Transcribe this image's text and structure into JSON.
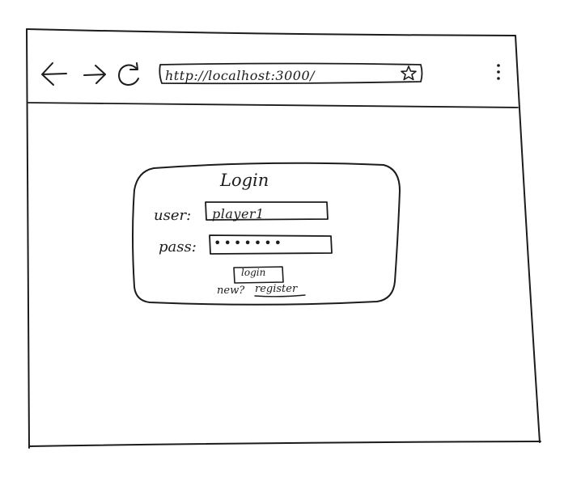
{
  "browser": {
    "url": "http://localhost:3000/",
    "icons": {
      "back": "arrow-left",
      "forward": "arrow-right",
      "reload": "reload",
      "bookmark": "star",
      "menu": "kebab-menu"
    }
  },
  "login": {
    "title": "Login",
    "user_label": "user:",
    "user_value": "player1",
    "pass_label": "pass:",
    "pass_value": "•••••••",
    "button_label": "login",
    "new_text": "new?",
    "register_link": "register"
  }
}
